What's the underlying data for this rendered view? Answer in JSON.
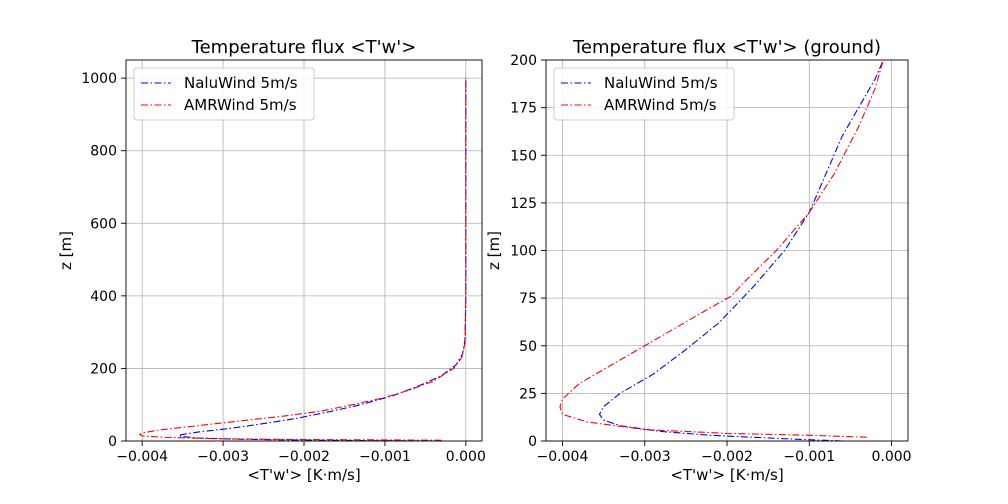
{
  "chart_data": [
    {
      "type": "line",
      "title": "Temperature flux <T'w'>",
      "xlabel": "<T'w'>  [K·m/s]",
      "ylabel": "z [m]",
      "xlim": [
        -0.0042,
        0.0002
      ],
      "ylim": [
        0,
        1050
      ],
      "xticks": [
        -0.004,
        -0.003,
        -0.002,
        -0.001,
        0.0
      ],
      "xtick_labels": [
        "−0.004",
        "−0.003",
        "−0.002",
        "−0.001",
        "0.000"
      ],
      "yticks": [
        0,
        200,
        400,
        600,
        800,
        1000
      ],
      "ytick_labels": [
        "0",
        "200",
        "400",
        "600",
        "800",
        "1000"
      ],
      "grid": true,
      "legend": "upper-left",
      "series": [
        {
          "name": "NaluWind 5m/s",
          "color": "#0000ff",
          "x": [
            -0.0004,
            -0.0012,
            -0.0022,
            -0.0028,
            -0.0033,
            -0.0035,
            -0.00355,
            -0.0035,
            -0.0033,
            -0.0029,
            -0.0025,
            -0.0021,
            -0.0017,
            -0.0013,
            -0.0009,
            -0.0006,
            -0.0003,
            -0.00012,
            -4e-05,
            -1e-05,
            0.0,
            0.0
          ],
          "y": [
            0,
            1,
            3,
            5,
            8,
            12,
            15,
            18,
            25,
            35,
            48,
            62,
            80,
            100,
            125,
            150,
            180,
            210,
            240,
            280,
            400,
            1000
          ]
        },
        {
          "name": "AMRWind 5m/s",
          "color": "#ff0000",
          "x": [
            -0.0003,
            -0.001,
            -0.002,
            -0.003,
            -0.0037,
            -0.004,
            -0.00403,
            -0.004,
            -0.0038,
            -0.0034,
            -0.003,
            -0.0026,
            -0.0022,
            -0.0018,
            -0.0014,
            -0.001,
            -0.0007,
            -0.0004,
            -0.00015,
            -5e-05,
            -1e-05,
            0.0,
            0.0
          ],
          "y": [
            2,
            3,
            4,
            6,
            10,
            14,
            18,
            22,
            30,
            40,
            50,
            60,
            70,
            82,
            100,
            120,
            140,
            165,
            200,
            230,
            270,
            400,
            1000
          ]
        }
      ]
    },
    {
      "type": "line",
      "title": "Temperature flux <T'w'> (ground)",
      "xlabel": "<T'w'>  [K·m/s]",
      "ylabel": "z [m]",
      "xlim": [
        -0.0042,
        0.0002
      ],
      "ylim": [
        0,
        200
      ],
      "xticks": [
        -0.004,
        -0.003,
        -0.002,
        -0.001,
        0.0
      ],
      "xtick_labels": [
        "−0.004",
        "−0.003",
        "−0.002",
        "−0.001",
        "0.000"
      ],
      "yticks": [
        0,
        25,
        50,
        75,
        100,
        125,
        150,
        175,
        200
      ],
      "ytick_labels": [
        "0",
        "25",
        "50",
        "75",
        "100",
        "125",
        "150",
        "175",
        "200"
      ],
      "grid": true,
      "legend": "upper-left",
      "series": [
        {
          "name": "NaluWind 5m/s",
          "color": "#0000ff",
          "x": [
            -0.0006,
            -0.0012,
            -0.0022,
            -0.0028,
            -0.0033,
            -0.0035,
            -0.00355,
            -0.0035,
            -0.0033,
            -0.0029,
            -0.0025,
            -0.0021,
            -0.0017,
            -0.0013,
            -0.001,
            -0.0008,
            -0.0006,
            -0.0004,
            -0.0002,
            -0.0001
          ],
          "y": [
            0,
            1,
            3,
            5,
            8,
            11,
            14,
            18,
            25,
            35,
            48,
            62,
            80,
            100,
            120,
            140,
            160,
            175,
            190,
            200
          ]
        },
        {
          "name": "AMRWind 5m/s",
          "color": "#ff0000",
          "x": [
            -0.0003,
            -0.001,
            -0.002,
            -0.003,
            -0.0037,
            -0.004,
            -0.00403,
            -0.004,
            -0.0038,
            -0.0034,
            -0.003,
            -0.0026,
            -0.0022,
            -0.00195,
            -0.0018,
            -0.0014,
            -0.001,
            -0.0007,
            -0.0004,
            -0.0002,
            -0.0001
          ],
          "y": [
            2,
            3,
            4,
            6,
            10,
            14,
            18,
            22,
            30,
            40,
            50,
            60,
            70,
            76,
            83,
            100,
            120,
            140,
            165,
            185,
            200
          ]
        }
      ]
    }
  ]
}
